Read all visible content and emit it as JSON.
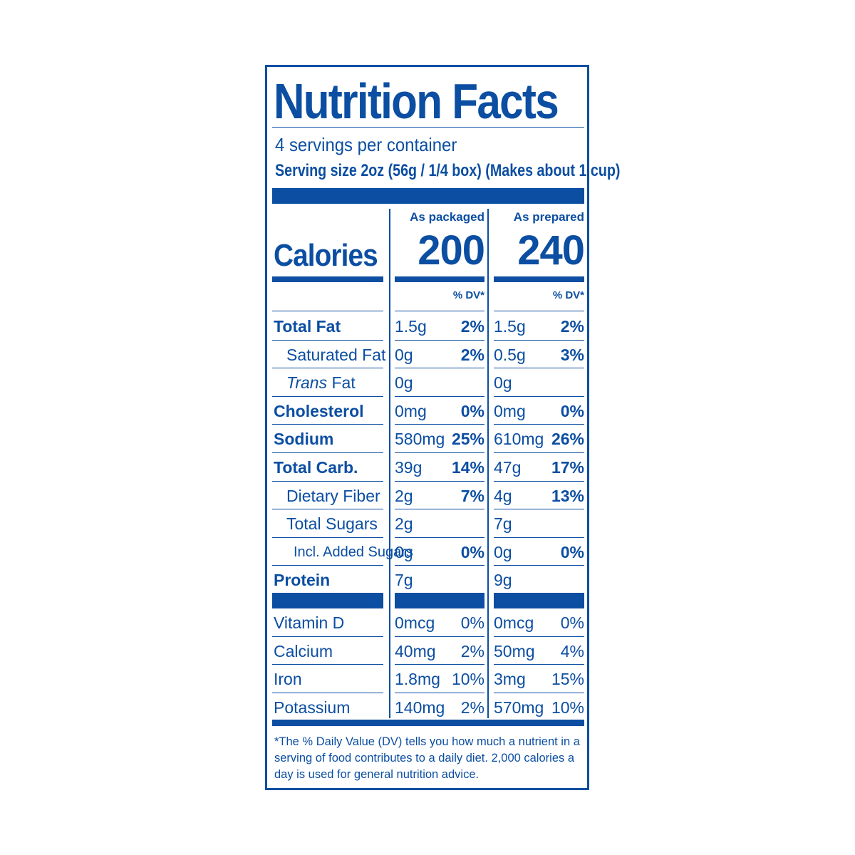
{
  "title": "Nutrition Facts",
  "servings_per_container": "4 servings per container",
  "serving_size": "Serving size  2oz (56g / 1/4 box) (Makes about 1 cup)",
  "columns": {
    "packaged_label": "As packaged",
    "prepared_label": "As prepared",
    "dv_label": "% DV*"
  },
  "calories": {
    "label": "Calories",
    "packaged": "200",
    "prepared": "240"
  },
  "rows": [
    {
      "name": "Total Fat",
      "style": "bold",
      "amt1": "1.5g",
      "dv1": "2%",
      "amt2": "1.5g",
      "dv2": "2%"
    },
    {
      "name": "Saturated Fat",
      "style": "indent1",
      "amt1": "0g",
      "dv1": "2%",
      "amt2": "0.5g",
      "dv2": "3%"
    },
    {
      "name_italic": "Trans",
      "name": " Fat",
      "style": "indent1",
      "amt1": "0g",
      "dv1": "",
      "amt2": "0g",
      "dv2": ""
    },
    {
      "name": "Cholesterol",
      "style": "bold",
      "amt1": "0mg",
      "dv1": "0%",
      "amt2": "0mg",
      "dv2": "0%"
    },
    {
      "name": "Sodium",
      "style": "bold",
      "amt1": "580mg",
      "dv1": "25%",
      "amt2": "610mg",
      "dv2": "26%"
    },
    {
      "name": "Total Carb.",
      "style": "bold",
      "amt1": "39g",
      "dv1": "14%",
      "amt2": "47g",
      "dv2": "17%"
    },
    {
      "name": "Dietary Fiber",
      "style": "indent1",
      "amt1": "2g",
      "dv1": "7%",
      "amt2": "4g",
      "dv2": "13%"
    },
    {
      "name": "Total Sugars",
      "style": "indent1",
      "amt1": "2g",
      "dv1": "",
      "amt2": "7g",
      "dv2": ""
    },
    {
      "name": "Incl. Added Sugars",
      "style": "indent2",
      "amt1": "0g",
      "dv1": "0%",
      "amt2": "0g",
      "dv2": "0%"
    },
    {
      "name": "Protein",
      "style": "bold",
      "amt1": "7g",
      "dv1": "",
      "amt2": "9g",
      "dv2": ""
    }
  ],
  "micros": [
    {
      "name": "Vitamin D",
      "amt1": "0mcg",
      "dv1": "0%",
      "amt2": "0mcg",
      "dv2": "0%"
    },
    {
      "name": "Calcium",
      "amt1": "40mg",
      "dv1": "2%",
      "amt2": "50mg",
      "dv2": "4%"
    },
    {
      "name": "Iron",
      "amt1": "1.8mg",
      "dv1": "10%",
      "amt2": "3mg",
      "dv2": "15%"
    },
    {
      "name": "Potassium",
      "amt1": "140mg",
      "dv1": "2%",
      "amt2": "570mg",
      "dv2": "10%"
    }
  ],
  "footnote": "*The % Daily Value (DV) tells you how much a nutrient in a serving of food contributes to a daily diet. 2,000 calories a day is used for general nutrition advice.",
  "colors": {
    "ink": "#0b4ea2",
    "background": "#ffffff"
  }
}
